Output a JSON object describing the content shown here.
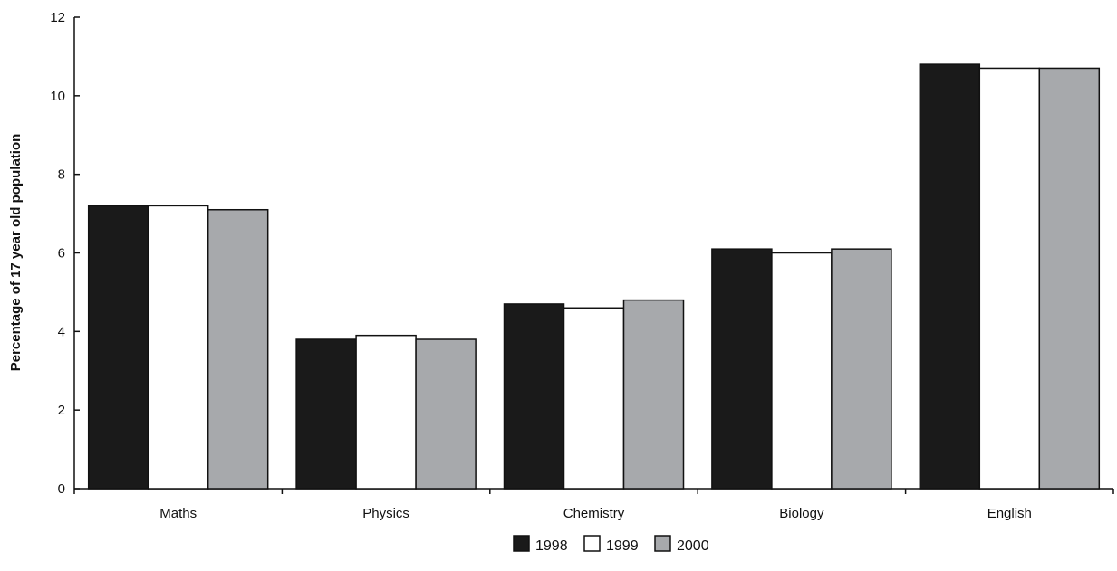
{
  "chart_data": {
    "type": "bar",
    "title": "",
    "xlabel": "",
    "ylabel": "Percentage of 17 year old population",
    "ylim": [
      0,
      12
    ],
    "yticks": [
      0,
      2,
      4,
      6,
      8,
      10,
      12
    ],
    "categories": [
      "Maths",
      "Physics",
      "Chemistry",
      "Biology",
      "English"
    ],
    "series": [
      {
        "name": "1998",
        "color": "#1a1a1a",
        "values": [
          7.2,
          3.8,
          4.7,
          6.1,
          10.8
        ]
      },
      {
        "name": "1999",
        "color": "#ffffff",
        "values": [
          7.2,
          3.9,
          4.6,
          6.0,
          10.7
        ]
      },
      {
        "name": "2000",
        "color": "#a7a9ac",
        "values": [
          7.1,
          3.8,
          4.8,
          6.1,
          10.7
        ]
      }
    ],
    "grid": false,
    "legend_position": "bottom-center"
  }
}
